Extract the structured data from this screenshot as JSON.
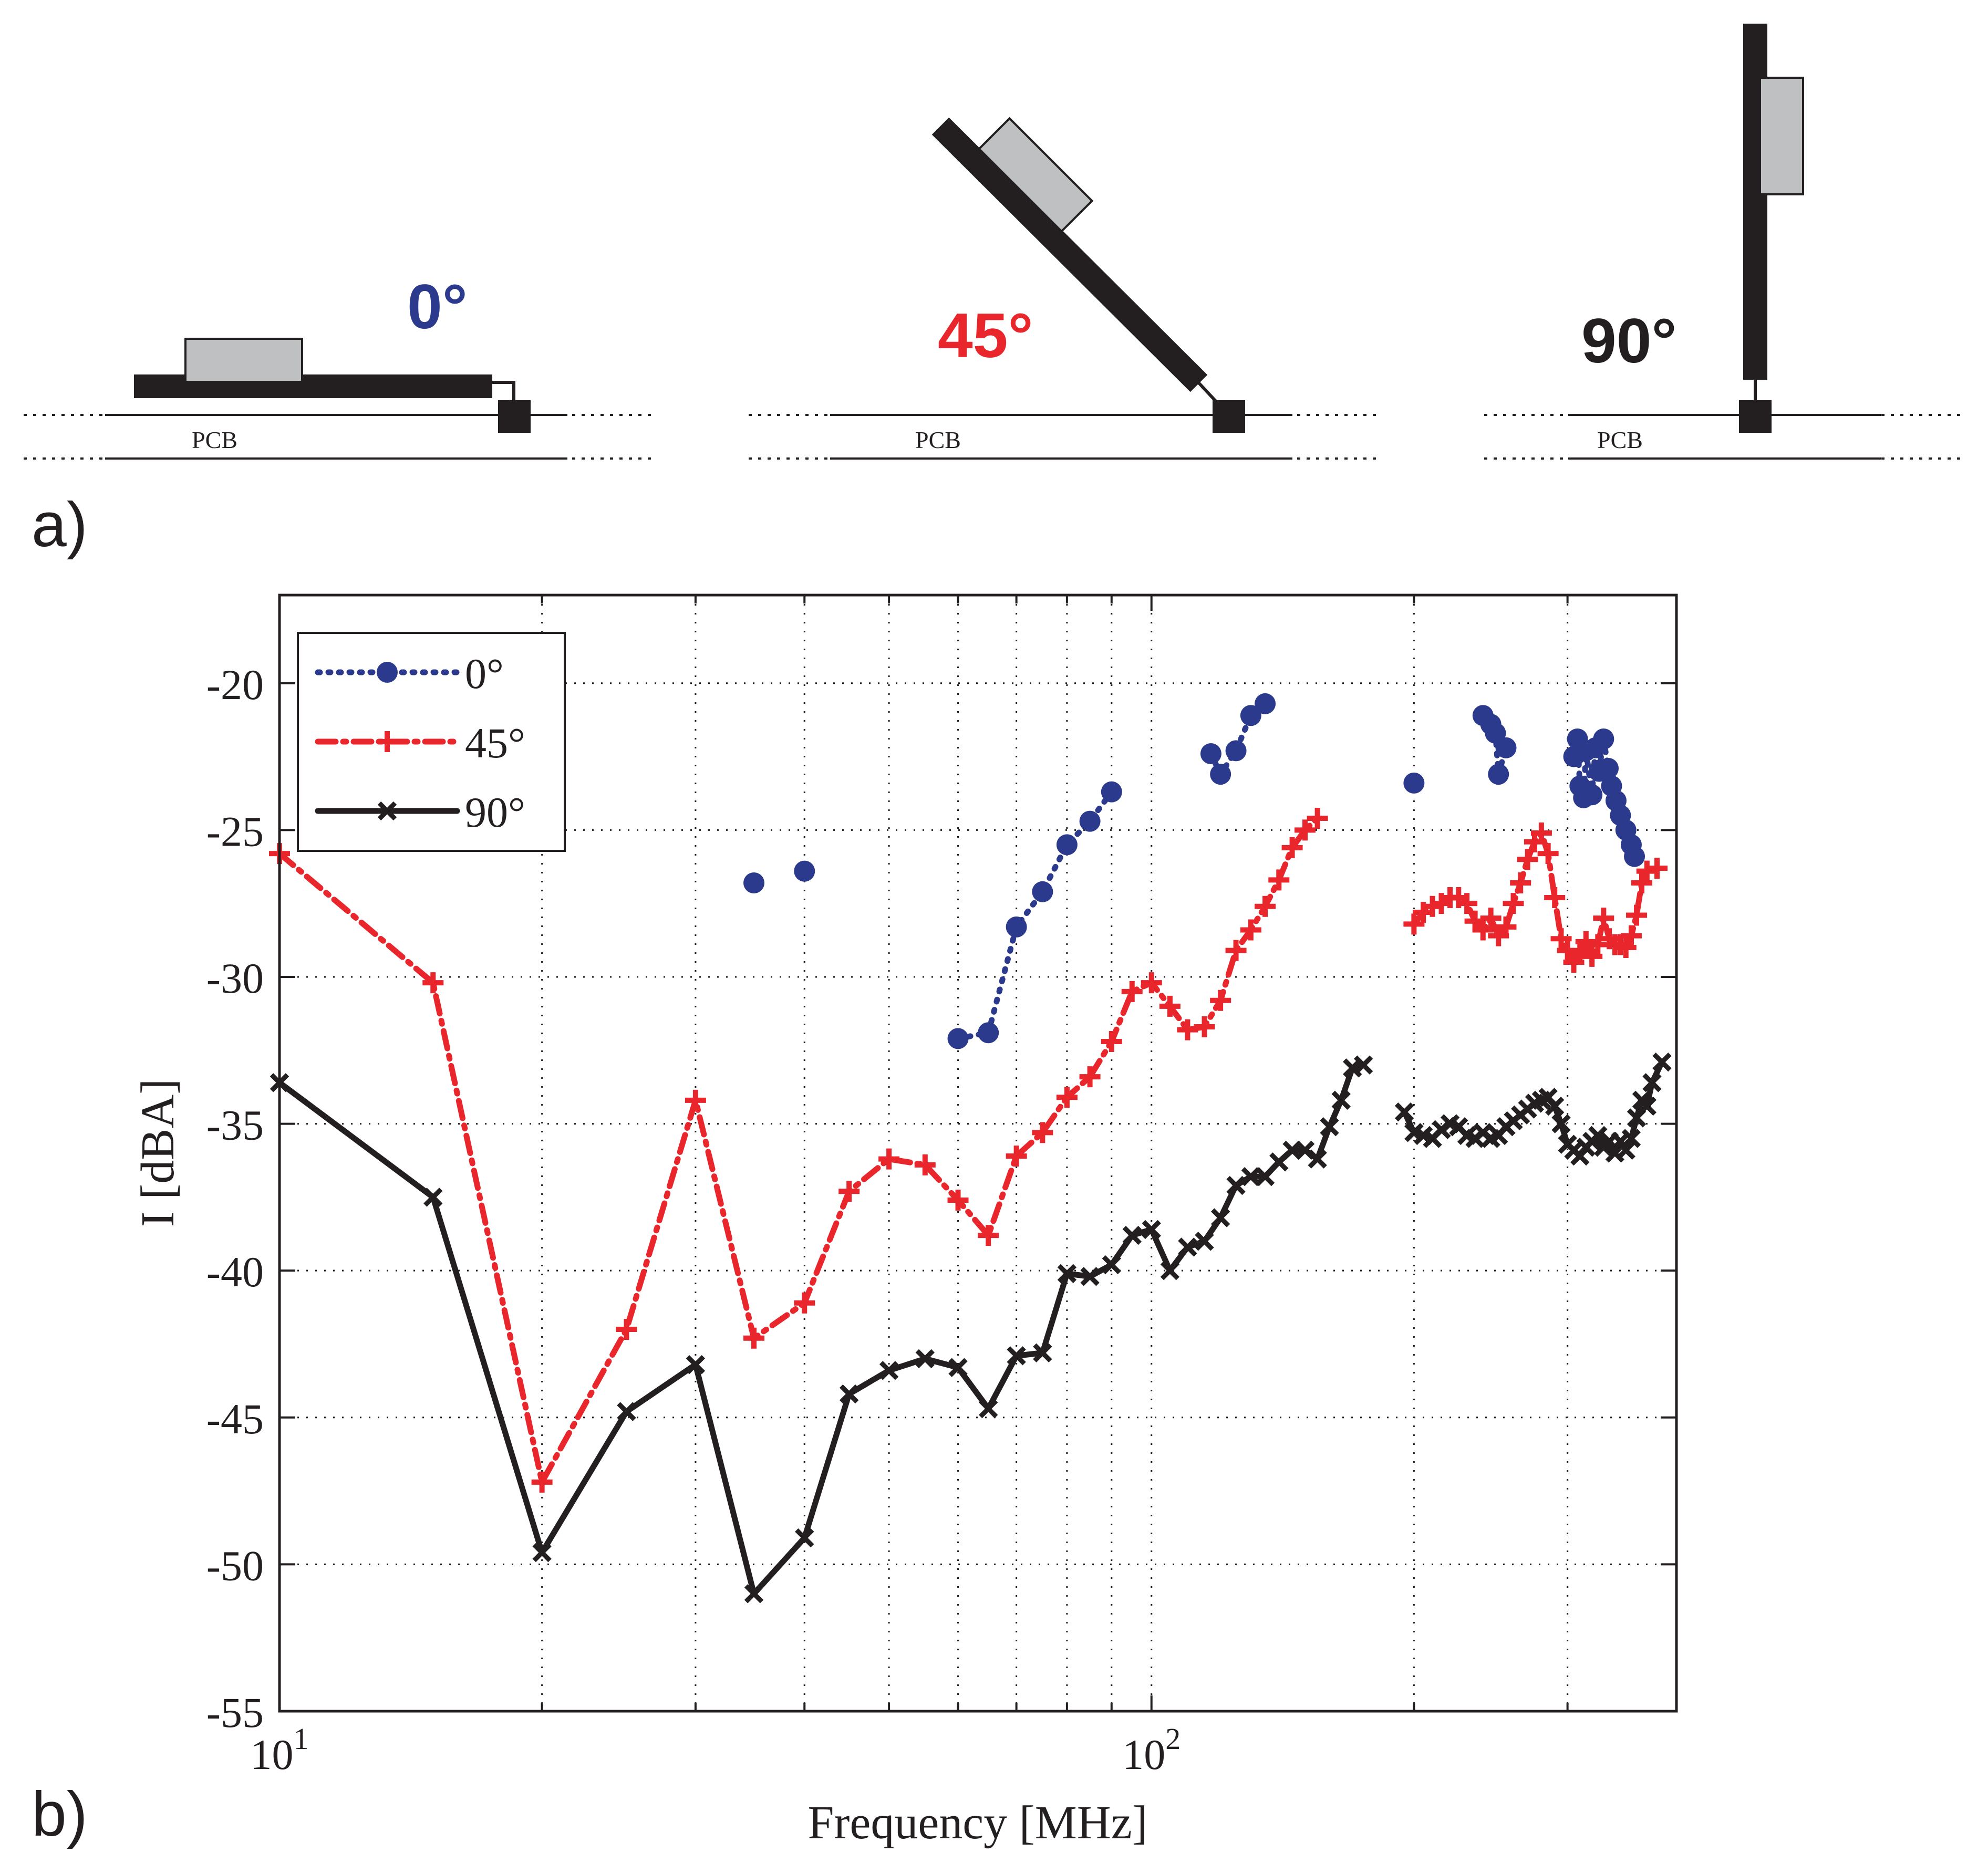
{
  "panel_a": {
    "label": "a)",
    "diagrams": [
      {
        "angle_label": "0°",
        "angle_color": "#2b3a8c",
        "pcb_label": "PCB"
      },
      {
        "angle_label": "45°",
        "angle_color": "#e8262c",
        "pcb_label": "PCB"
      },
      {
        "angle_label": "90°",
        "angle_color": "#231f20",
        "pcb_label": "PCB"
      }
    ]
  },
  "panel_b": {
    "label": "b)"
  },
  "chart_data": {
    "type": "line",
    "xlabel": "Frequency [MHz]",
    "ylabel": "I [dBA]",
    "xscale": "log",
    "xlim": [
      10,
      400
    ],
    "ylim": [
      -55,
      -17
    ],
    "grid": true,
    "legend_position": "top-left",
    "x_tick_labels": [
      {
        "value": 10,
        "base": "10",
        "exp": "1"
      },
      {
        "value": 100,
        "base": "10",
        "exp": "2"
      }
    ],
    "y_ticks": [
      -55,
      -50,
      -45,
      -40,
      -35,
      -30,
      -25,
      -20
    ],
    "y_tick_labels": [
      "-55",
      "-50",
      "-45",
      "-40",
      "-35",
      "-30",
      "-25",
      "-20"
    ],
    "series": [
      {
        "name": "0°",
        "color": "#2b3a8c",
        "line_style": "dotted",
        "marker": "circle",
        "points": [
          [
            35,
            -26.8
          ],
          [
            40,
            -26.4
          ]
        ],
        "segments": [
          [
            [
              60,
              -32.1
            ],
            [
              65,
              -31.9
            ],
            [
              70,
              -28.3
            ],
            [
              75,
              -27.1
            ],
            [
              80,
              -25.5
            ],
            [
              85,
              -24.7
            ],
            [
              90,
              -23.7
            ]
          ],
          [
            [
              117,
              -22.4
            ],
            [
              120,
              -23.1
            ],
            [
              125,
              -22.3
            ],
            [
              130,
              -21.1
            ],
            [
              135,
              -20.7
            ]
          ],
          [
            [
              200,
              -23.4
            ]
          ],
          [
            [
              240,
              -21.1
            ],
            [
              245,
              -21.4
            ],
            [
              248,
              -21.7
            ],
            [
              250,
              -23.1
            ],
            [
              255,
              -22.2
            ]
          ],
          [
            [
              305,
              -22.5
            ],
            [
              308,
              -21.9
            ],
            [
              310,
              -23.5
            ],
            [
              313,
              -23.9
            ],
            [
              315,
              -22.3
            ],
            [
              320,
              -23.8
            ],
            [
              323,
              -22.2
            ],
            [
              326,
              -23.0
            ],
            [
              330,
              -21.9
            ],
            [
              334,
              -22.9
            ],
            [
              337,
              -23.5
            ],
            [
              341,
              -24.0
            ],
            [
              345,
              -24.5
            ],
            [
              350,
              -25.0
            ],
            [
              355,
              -25.5
            ],
            [
              358,
              -25.9
            ]
          ]
        ]
      },
      {
        "name": "45°",
        "color": "#e8262c",
        "line_style": "dashdot",
        "marker": "plus",
        "segments": [
          [
            [
              10,
              -25.8
            ],
            [
              15,
              -30.2
            ],
            [
              20,
              -47.2
            ],
            [
              25,
              -42.0
            ],
            [
              30,
              -34.2
            ],
            [
              35,
              -42.3
            ],
            [
              40,
              -41.1
            ],
            [
              45,
              -37.3
            ],
            [
              50,
              -36.2
            ],
            [
              55,
              -36.4
            ],
            [
              60,
              -37.6
            ],
            [
              65,
              -38.8
            ],
            [
              70,
              -36.1
            ],
            [
              75,
              -35.3
            ],
            [
              80,
              -34.1
            ],
            [
              85,
              -33.4
            ],
            [
              90,
              -32.2
            ],
            [
              95,
              -30.5
            ],
            [
              100,
              -30.2
            ],
            [
              105,
              -31.0
            ],
            [
              110,
              -31.8
            ],
            [
              115,
              -31.7
            ],
            [
              120,
              -30.8
            ],
            [
              125,
              -29.1
            ],
            [
              130,
              -28.4
            ],
            [
              135,
              -27.6
            ],
            [
              140,
              -26.7
            ],
            [
              145,
              -25.6
            ],
            [
              150,
              -25.0
            ],
            [
              155,
              -24.6
            ]
          ],
          [
            [
              200,
              -28.2
            ],
            [
              205,
              -27.8
            ],
            [
              210,
              -27.6
            ],
            [
              215,
              -27.5
            ],
            [
              220,
              -27.3
            ],
            [
              225,
              -27.3
            ],
            [
              230,
              -27.5
            ],
            [
              235,
              -28.1
            ],
            [
              240,
              -28.4
            ],
            [
              245,
              -28.0
            ],
            [
              250,
              -28.6
            ],
            [
              255,
              -28.3
            ],
            [
              260,
              -27.5
            ],
            [
              265,
              -26.8
            ],
            [
              270,
              -26.0
            ],
            [
              275,
              -25.4
            ],
            [
              280,
              -25.1
            ],
            [
              285,
              -25.8
            ],
            [
              290,
              -27.3
            ],
            [
              295,
              -28.7
            ],
            [
              300,
              -29.1
            ],
            [
              305,
              -29.5
            ],
            [
              310,
              -29.2
            ],
            [
              315,
              -28.8
            ],
            [
              320,
              -29.3
            ],
            [
              325,
              -28.9
            ],
            [
              330,
              -28.0
            ],
            [
              335,
              -28.7
            ],
            [
              340,
              -28.9
            ],
            [
              345,
              -28.9
            ],
            [
              350,
              -29.0
            ],
            [
              355,
              -28.6
            ],
            [
              360,
              -27.9
            ],
            [
              365,
              -26.8
            ],
            [
              370,
              -26.4
            ],
            [
              380,
              -26.3
            ]
          ]
        ]
      },
      {
        "name": "90°",
        "color": "#231f20",
        "line_style": "solid",
        "marker": "x",
        "segments": [
          [
            [
              10,
              -33.6
            ],
            [
              15,
              -37.5
            ],
            [
              20,
              -49.6
            ],
            [
              25,
              -44.8
            ],
            [
              30,
              -43.2
            ],
            [
              35,
              -51.0
            ],
            [
              40,
              -49.1
            ],
            [
              45,
              -44.2
            ],
            [
              50,
              -43.4
            ],
            [
              55,
              -43.0
            ],
            [
              60,
              -43.3
            ],
            [
              65,
              -44.7
            ],
            [
              70,
              -42.9
            ],
            [
              75,
              -42.8
            ],
            [
              80,
              -40.1
            ],
            [
              85,
              -40.2
            ],
            [
              90,
              -39.8
            ],
            [
              95,
              -38.8
            ],
            [
              100,
              -38.6
            ],
            [
              105,
              -40.0
            ],
            [
              110,
              -39.2
            ],
            [
              115,
              -39.0
            ],
            [
              120,
              -38.2
            ],
            [
              125,
              -37.1
            ],
            [
              130,
              -36.8
            ],
            [
              135,
              -36.8
            ],
            [
              140,
              -36.3
            ],
            [
              145,
              -35.9
            ],
            [
              150,
              -35.9
            ],
            [
              155,
              -36.2
            ],
            [
              160,
              -35.1
            ],
            [
              165,
              -34.2
            ],
            [
              170,
              -33.1
            ],
            [
              175,
              -33.0
            ]
          ],
          [
            [
              195,
              -34.6
            ],
            [
              200,
              -35.3
            ],
            [
              205,
              -35.4
            ],
            [
              210,
              -35.5
            ],
            [
              215,
              -35.2
            ],
            [
              220,
              -35.0
            ],
            [
              225,
              -35.1
            ],
            [
              230,
              -35.4
            ],
            [
              235,
              -35.5
            ],
            [
              240,
              -35.3
            ],
            [
              245,
              -35.5
            ],
            [
              250,
              -35.4
            ],
            [
              255,
              -35.1
            ],
            [
              260,
              -34.9
            ],
            [
              265,
              -34.7
            ],
            [
              270,
              -34.5
            ],
            [
              275,
              -34.3
            ],
            [
              280,
              -34.2
            ],
            [
              285,
              -34.1
            ],
            [
              290,
              -34.4
            ],
            [
              295,
              -35.0
            ],
            [
              300,
              -35.7
            ],
            [
              305,
              -35.9
            ],
            [
              310,
              -36.1
            ],
            [
              315,
              -35.8
            ],
            [
              320,
              -35.6
            ],
            [
              325,
              -35.4
            ],
            [
              330,
              -35.8
            ],
            [
              335,
              -35.6
            ],
            [
              340,
              -36.0
            ],
            [
              345,
              -35.6
            ],
            [
              350,
              -35.9
            ],
            [
              355,
              -35.5
            ],
            [
              360,
              -34.8
            ],
            [
              365,
              -34.2
            ],
            [
              370,
              -34.4
            ],
            [
              375,
              -33.6
            ],
            [
              385,
              -32.9
            ]
          ]
        ]
      }
    ]
  }
}
